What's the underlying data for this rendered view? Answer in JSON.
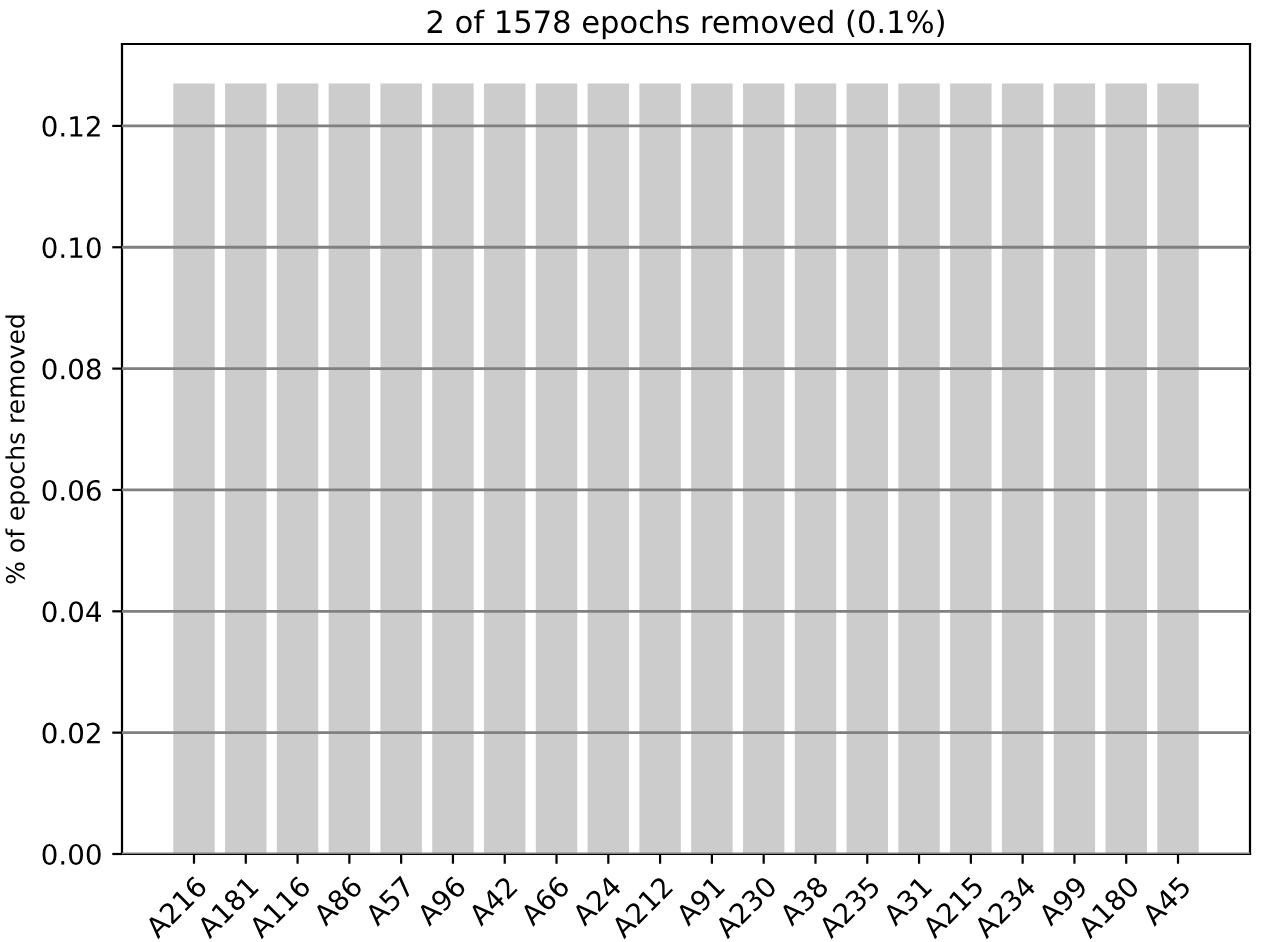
{
  "chart_data": {
    "type": "bar",
    "title": "2 of 1578 epochs removed (0.1%)",
    "ylabel": "% of epochs removed",
    "categories": [
      "A216",
      "A181",
      "A116",
      "A86",
      "A57",
      "A96",
      "A42",
      "A66",
      "A24",
      "A212",
      "A91",
      "A230",
      "A38",
      "A235",
      "A31",
      "A215",
      "A234",
      "A99",
      "A180",
      "A45"
    ],
    "values": [
      0.127,
      0.127,
      0.127,
      0.127,
      0.127,
      0.127,
      0.127,
      0.127,
      0.127,
      0.127,
      0.127,
      0.127,
      0.127,
      0.127,
      0.127,
      0.127,
      0.127,
      0.127,
      0.127,
      0.127
    ],
    "color": "#cccccc",
    "ylim": [
      0,
      0.1335
    ],
    "yticks": [
      {
        "value": 0,
        "label": "0.00"
      },
      {
        "value": 0.02,
        "label": "0.02"
      },
      {
        "value": 0.04,
        "label": "0.04"
      },
      {
        "value": 0.06,
        "label": "0.06"
      },
      {
        "value": 0.08,
        "label": "0.08"
      },
      {
        "value": 0.1,
        "label": "0.10"
      },
      {
        "value": 0.12,
        "label": "0.12"
      }
    ],
    "grid": "y"
  }
}
